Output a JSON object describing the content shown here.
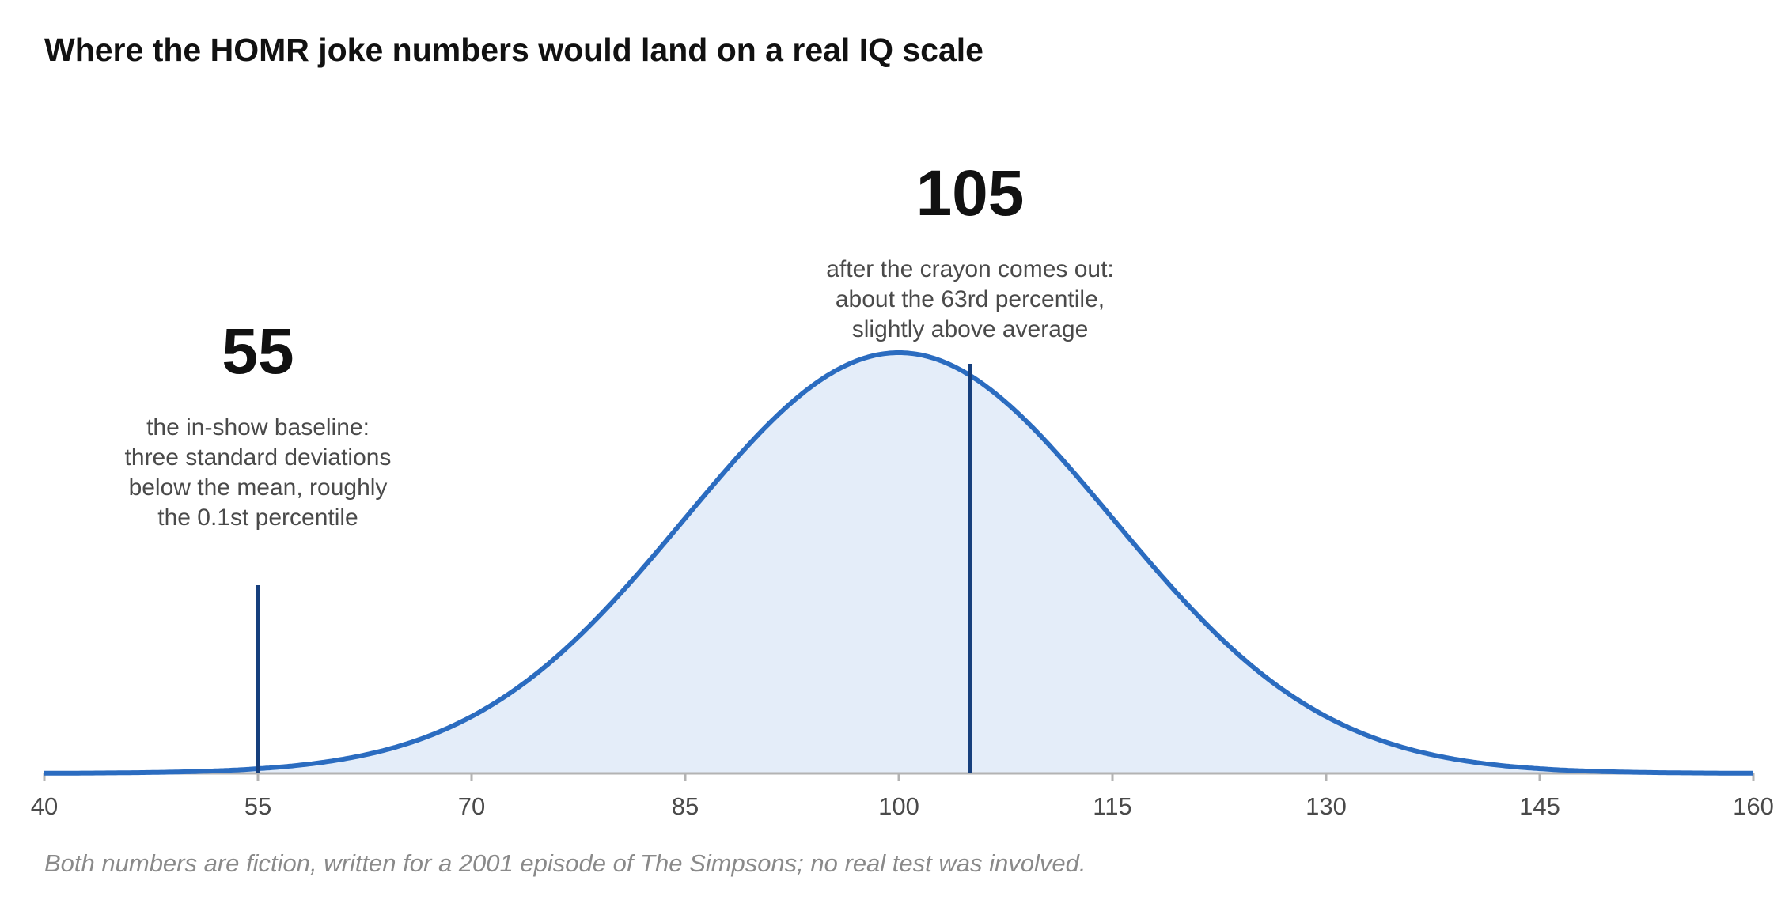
{
  "chart_data": {
    "type": "area",
    "title": "Where the HOMR joke numbers would land on a real IQ scale",
    "xlabel": "",
    "ylabel": "",
    "distribution": {
      "kind": "normal",
      "mean": 100,
      "sd": 15
    },
    "xlim": [
      40,
      160
    ],
    "x_ticks": [
      40,
      55,
      70,
      85,
      100,
      115,
      130,
      145,
      160
    ],
    "grid": false,
    "legend": "none",
    "markers": [
      {
        "x": 55,
        "label": "55",
        "annotation": [
          "the in-show baseline:",
          "three standard deviations",
          "below the mean, roughly",
          "the 0.1st percentile"
        ]
      },
      {
        "x": 105,
        "label": "105",
        "annotation": [
          "after the crayon comes out:",
          "about the 63rd percentile,",
          "slightly above average"
        ]
      }
    ],
    "colors": {
      "curve": "#2b6cc0",
      "fill": "#e4edf9",
      "marker": "#163f7d",
      "axis": "#b3b3b3"
    }
  },
  "footnote": "Both numbers are fiction, written for a 2001 episode of The Simpsons; no real test was involved."
}
